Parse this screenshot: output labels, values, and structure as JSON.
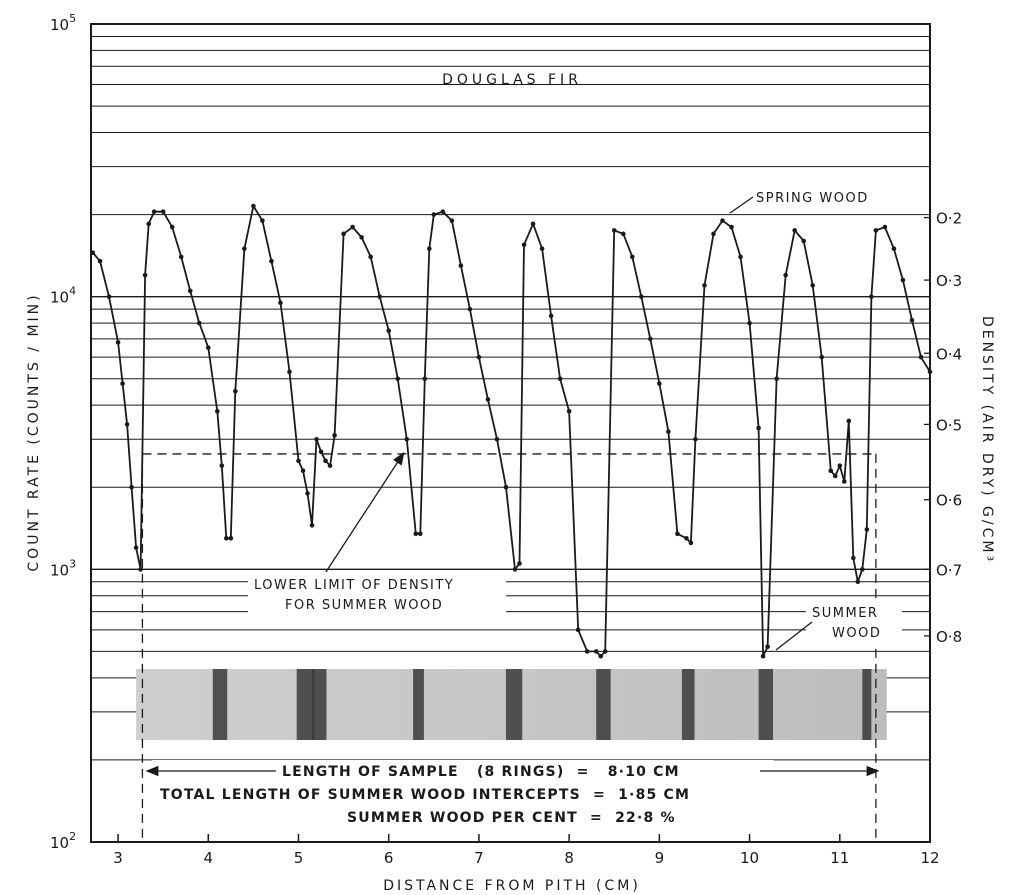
{
  "chart_data": {
    "type": "line",
    "title": "DOUGLAS FIR",
    "xlabel": "DISTANCE FROM PITH (CM)",
    "ylabel": "COUNT RATE (COUNTS / MIN)",
    "y2label": "DENSITY (AIR DRY) G/CM³",
    "y_scale": "log",
    "xlim": [
      2.7,
      12
    ],
    "ylim": [
      100,
      100000
    ],
    "x_ticks": [
      "3",
      "4",
      "5",
      "6",
      "7",
      "8",
      "9",
      "10",
      "11",
      "12"
    ],
    "y_ticks": [
      {
        "value": 100,
        "base": "10",
        "exp": "2"
      },
      {
        "value": 1000,
        "base": "10",
        "exp": "3"
      },
      {
        "value": 10000,
        "base": "10",
        "exp": "4"
      },
      {
        "value": 100000,
        "base": "10",
        "exp": "5"
      }
    ],
    "density_ticks": [
      {
        "label": "O·2",
        "count_rate": 19500
      },
      {
        "label": "O·3",
        "count_rate": 11500
      },
      {
        "label": "O·4",
        "count_rate": 6200
      },
      {
        "label": "O·5",
        "count_rate": 3400
      },
      {
        "label": "O·6",
        "count_rate": 1800
      },
      {
        "label": "O·7",
        "count_rate": 1000
      },
      {
        "label": "O·8",
        "count_rate": 570
      }
    ],
    "grid": true,
    "series": [
      {
        "x": [
          2.72,
          2.8,
          2.9,
          3.0,
          3.05,
          3.1,
          3.15,
          3.2,
          3.25,
          3.3,
          3.34,
          3.4,
          3.5,
          3.6,
          3.7,
          3.8,
          3.9,
          4.0,
          4.1,
          4.15,
          4.2,
          4.25,
          4.3,
          4.4,
          4.5,
          4.6,
          4.7,
          4.8,
          4.9,
          5.0,
          5.05,
          5.1,
          5.15,
          5.2,
          5.25,
          5.3,
          5.35,
          5.4,
          5.5,
          5.6,
          5.7,
          5.8,
          5.9,
          6.0,
          6.1,
          6.2,
          6.3,
          6.35,
          6.4,
          6.45,
          6.5,
          6.6,
          6.7,
          6.8,
          6.9,
          7.0,
          7.1,
          7.2,
          7.3,
          7.4,
          7.45,
          7.5,
          7.6,
          7.7,
          7.8,
          7.9,
          8.0,
          8.1,
          8.2,
          8.3,
          8.35,
          8.4,
          8.5,
          8.6,
          8.7,
          8.8,
          8.9,
          9.0,
          9.1,
          9.2,
          9.3,
          9.35,
          9.4,
          9.5,
          9.6,
          9.7,
          9.8,
          9.9,
          10.0,
          10.1,
          10.15,
          10.2,
          10.3,
          10.4,
          10.5,
          10.6,
          10.7,
          10.8,
          10.9,
          10.95,
          11.0,
          11.05,
          11.1,
          11.15,
          11.2,
          11.25,
          11.3,
          11.35,
          11.4,
          11.5,
          11.6,
          11.7,
          11.8,
          11.9,
          12.0
        ],
        "y": [
          14500,
          13500,
          10000,
          6800,
          4800,
          3400,
          2000,
          1200,
          1000,
          12000,
          18500,
          20500,
          20500,
          18000,
          14000,
          10500,
          8000,
          6500,
          3800,
          2400,
          1300,
          1300,
          4500,
          15000,
          21500,
          19000,
          13500,
          9500,
          5300,
          2500,
          2300,
          1900,
          1450,
          3000,
          2700,
          2500,
          2400,
          3100,
          17000,
          18000,
          16500,
          14000,
          10000,
          7500,
          5000,
          3000,
          1350,
          1350,
          5000,
          15000,
          20000,
          20500,
          19000,
          13000,
          9000,
          6000,
          4200,
          3000,
          2000,
          1000,
          1050,
          15500,
          18500,
          15000,
          8500,
          5000,
          3800,
          600,
          500,
          500,
          480,
          500,
          17500,
          17000,
          14000,
          10000,
          7000,
          4800,
          3200,
          1350,
          1300,
          1250,
          3000,
          11000,
          17000,
          19000,
          18000,
          14000,
          8000,
          3300,
          480,
          520,
          5000,
          12000,
          17500,
          16000,
          11000,
          6000,
          2300,
          2200,
          2400,
          2100,
          3500,
          1100,
          900,
          1000,
          1400,
          10000,
          17500,
          18000,
          15000,
          11500,
          8200,
          6000,
          5300
        ]
      }
    ],
    "reference_lines": [
      {
        "name": "LOWER LIMIT OF DENSITY FOR SUMMER WOOD",
        "y": 2650,
        "x_start": 3.27,
        "x_end": 11.4,
        "style": "dashed"
      }
    ],
    "sample_bounds": [
      3.27,
      11.4
    ],
    "annotations": {
      "spring_wood": "SPRING WOOD",
      "lower_limit_line1": "LOWER LIMIT OF DENSITY",
      "lower_limit_line2": "FOR SUMMER WOOD",
      "summer_wood_line1": "SUMMER",
      "summer_wood_line2": "WOOD",
      "length_of_sample": "LENGTH OF SAMPLE   (8 RINGS)  =   8·10 CM",
      "total_length": "TOTAL LENGTH OF SUMMER WOOD INTERCEPTS  =  1·85 CM",
      "summer_percent": "SUMMER WOOD PER CENT  =  22·8 %"
    },
    "colors": {
      "line": "#1a1a1a",
      "grid": "#1a1a1a",
      "background": "#ffffff"
    }
  }
}
